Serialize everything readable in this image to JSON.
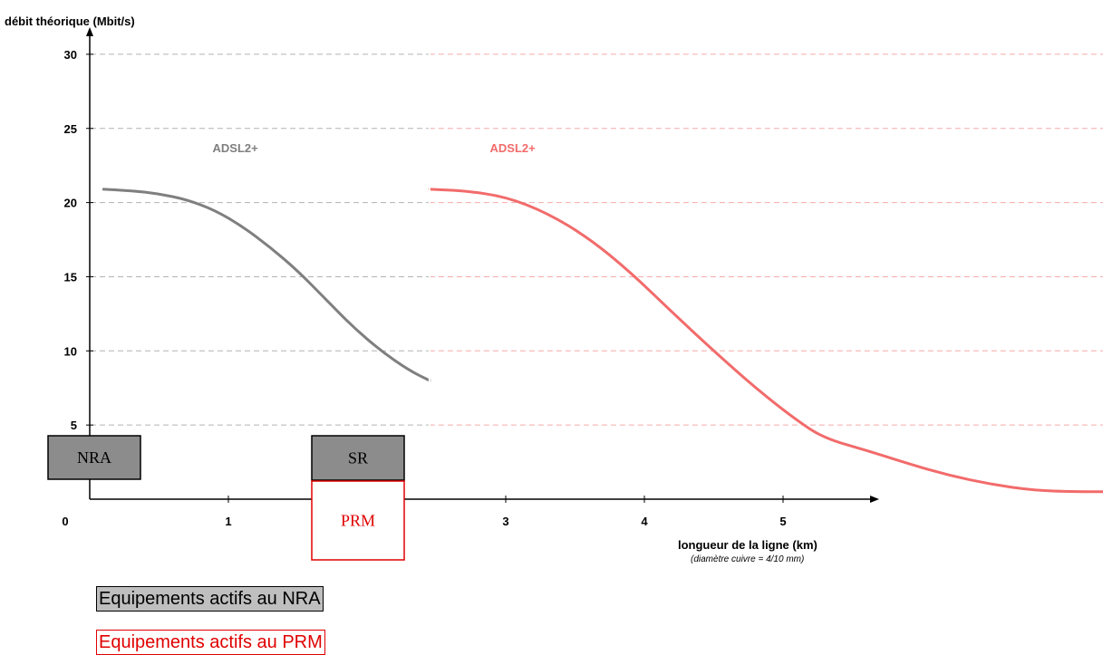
{
  "chart_data": {
    "type": "line",
    "ylabel": "débit théorique (Mbit/s)",
    "xlabel": "longueur de la ligne (km)",
    "xlabel_note": "(diamètre cuivre = 4/10 mm)",
    "xlim": [
      0,
      7.5
    ],
    "ylim": [
      0,
      30
    ],
    "xticks": [
      "0",
      "1",
      "3",
      "4",
      "5"
    ],
    "xtick_values": [
      0,
      1,
      3,
      4,
      5
    ],
    "yticks": [
      "5",
      "10",
      "15",
      "20",
      "25",
      "30"
    ],
    "ytick_values": [
      5,
      10,
      15,
      20,
      25,
      30
    ],
    "grid": true,
    "series": [
      {
        "name": "ADSL2+",
        "color": "#7f7f7f",
        "x": [
          0.1,
          0.3,
          0.5,
          0.7,
          0.9,
          1.1,
          1.3,
          1.5,
          1.7,
          1.9,
          2.1,
          2.3,
          2.45
        ],
        "y": [
          20.9,
          20.8,
          20.6,
          20.2,
          19.5,
          18.4,
          17.0,
          15.4,
          13.5,
          11.6,
          10.0,
          8.7,
          8.0
        ]
      },
      {
        "name": "ADSL2+",
        "color": "#f26b6b",
        "x": [
          2.45,
          2.7,
          3.0,
          3.3,
          3.6,
          3.9,
          4.2,
          4.5,
          4.8,
          5.1,
          5.3,
          5.6,
          5.9,
          6.2,
          6.5,
          6.8,
          7.1,
          7.5
        ],
        "y": [
          20.9,
          20.8,
          20.4,
          19.3,
          17.6,
          15.3,
          12.6,
          10.0,
          7.5,
          5.3,
          4.1,
          3.3,
          2.4,
          1.6,
          1.0,
          0.6,
          0.5,
          0.5
        ]
      }
    ],
    "boxes": [
      {
        "label": "NRA",
        "fill": "#8c8c8c",
        "border": "#000000",
        "text_color": "#000000"
      },
      {
        "label": "SR",
        "fill": "#8c8c8c",
        "border": "#000000",
        "text_color": "#000000"
      },
      {
        "label": "PRM",
        "fill": "#ffffff",
        "border": "#e00000",
        "text_color": "#e00000"
      }
    ]
  },
  "legend": {
    "nra": "Equipements actifs au NRA",
    "prm": "Equipements actifs au PRM"
  }
}
